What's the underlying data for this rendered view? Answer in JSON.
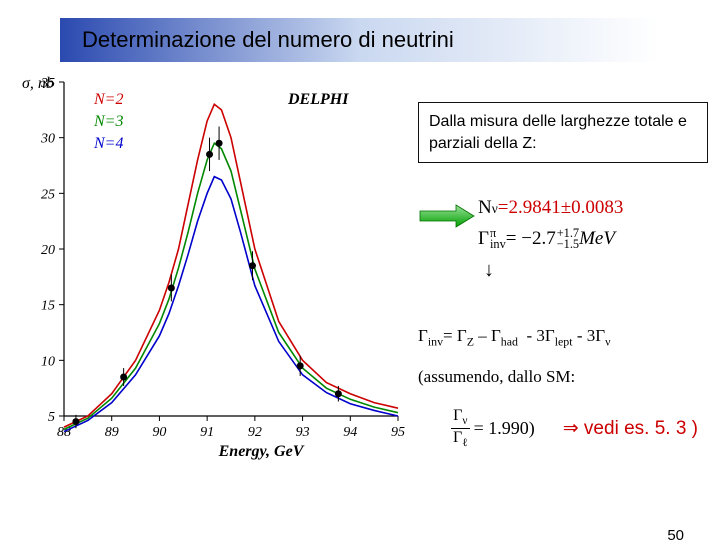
{
  "title": "Determinazione del numero di neutrini",
  "page_number": "50",
  "chart": {
    "type": "line",
    "xlabel": "Energy, GeV",
    "ylabel": "σ, nb",
    "label_fontsize": 16,
    "label_fontstyle": "italic",
    "xlim": [
      88,
      95
    ],
    "ylim": [
      5,
      35
    ],
    "xtick_step": 1,
    "ytick_step": 5,
    "xticks": [
      88,
      89,
      90,
      91,
      92,
      93,
      94,
      95
    ],
    "yticks": [
      5,
      10,
      15,
      20,
      25,
      30,
      35
    ],
    "background_color": "#ffffff",
    "axis_color": "#000000",
    "tick_fontsize": 14,
    "experiment_label": "DELPHI",
    "experiment_label_color": "#000000",
    "experiment_label_fontstyle": "italic",
    "series": [
      {
        "label": "N=2",
        "color": "#cc0000",
        "fontstyle": "italic",
        "line_width": 1.6,
        "points": [
          [
            88,
            4
          ],
          [
            88.5,
            5
          ],
          [
            89,
            7
          ],
          [
            89.5,
            10
          ],
          [
            90,
            14.5
          ],
          [
            90.2,
            17
          ],
          [
            90.4,
            20
          ],
          [
            90.6,
            24
          ],
          [
            90.8,
            28
          ],
          [
            91,
            31.5
          ],
          [
            91.15,
            33
          ],
          [
            91.3,
            32.5
          ],
          [
            91.5,
            30
          ],
          [
            91.7,
            26
          ],
          [
            92,
            20
          ],
          [
            92.5,
            13.5
          ],
          [
            93,
            10
          ],
          [
            93.5,
            8
          ],
          [
            94,
            7
          ],
          [
            94.5,
            6.2
          ],
          [
            95,
            5.7
          ]
        ]
      },
      {
        "label": "N=3",
        "color": "#008800",
        "fontstyle": "italic",
        "line_width": 1.6,
        "points": [
          [
            88,
            3.8
          ],
          [
            88.5,
            4.8
          ],
          [
            89,
            6.6
          ],
          [
            89.5,
            9.3
          ],
          [
            90,
            13.3
          ],
          [
            90.2,
            15.5
          ],
          [
            90.4,
            18.3
          ],
          [
            90.6,
            21.5
          ],
          [
            90.8,
            25
          ],
          [
            91,
            28
          ],
          [
            91.15,
            29.5
          ],
          [
            91.3,
            29
          ],
          [
            91.5,
            27
          ],
          [
            91.7,
            23.5
          ],
          [
            92,
            18.2
          ],
          [
            92.5,
            12.5
          ],
          [
            93,
            9.3
          ],
          [
            93.5,
            7.5
          ],
          [
            94,
            6.5
          ],
          [
            94.5,
            5.8
          ],
          [
            95,
            5.3
          ]
        ]
      },
      {
        "label": "N=4",
        "color": "#0000cc",
        "fontstyle": "italic",
        "line_width": 1.6,
        "points": [
          [
            88,
            3.6
          ],
          [
            88.5,
            4.6
          ],
          [
            89,
            6.2
          ],
          [
            89.5,
            8.7
          ],
          [
            90,
            12.2
          ],
          [
            90.2,
            14.2
          ],
          [
            90.4,
            16.7
          ],
          [
            90.6,
            19.5
          ],
          [
            90.8,
            22.5
          ],
          [
            91,
            25
          ],
          [
            91.15,
            26.5
          ],
          [
            91.3,
            26.2
          ],
          [
            91.5,
            24.5
          ],
          [
            91.7,
            21.5
          ],
          [
            92,
            16.7
          ],
          [
            92.5,
            11.7
          ],
          [
            93,
            8.7
          ],
          [
            93.5,
            7.1
          ],
          [
            94,
            6.1
          ],
          [
            94.5,
            5.5
          ],
          [
            95,
            5
          ]
        ]
      }
    ],
    "data_points": {
      "marker": "circle",
      "marker_size": 3.5,
      "marker_color": "#000000",
      "points": [
        [
          88.25,
          4.5
        ],
        [
          89.25,
          8.5
        ],
        [
          90.25,
          16.5
        ],
        [
          91.05,
          28.5
        ],
        [
          91.25,
          29.5
        ],
        [
          91.95,
          18.5
        ],
        [
          92.95,
          9.5
        ],
        [
          93.75,
          7.0
        ]
      ],
      "yerr": [
        0.6,
        0.8,
        1.2,
        1.5,
        1.5,
        1.3,
        0.9,
        0.7
      ]
    }
  },
  "right_panel": {
    "measure_text": "Dalla misura delle larghezze totale e parziali della Z:",
    "arrow_color": "#00b050",
    "nv_result": {
      "label": "N",
      "sub": "ν",
      "eq": " = ",
      "value": "2.9841",
      "pm": " ± ",
      "err": "0.0083"
    },
    "gamma_pi_result": {
      "label": "Γ",
      "sup": "π",
      "sub": "inv",
      "eq": " = −2.7",
      "err_up": "+1.7",
      "err_dn": "−1.5",
      "unit": " MeV"
    },
    "gamma_inv_formula": "Γinv = ΓZ − Γhad  - 3Γlept - 3Γν",
    "assume_text": "(assumendo, dallo SM:",
    "ratio": {
      "num_label": "Γν",
      "den_label": "Γℓ",
      "eq": "=",
      "value": "1.990",
      "close": " )"
    },
    "vedi_text": "⇒ vedi es. 5. 3 )"
  }
}
